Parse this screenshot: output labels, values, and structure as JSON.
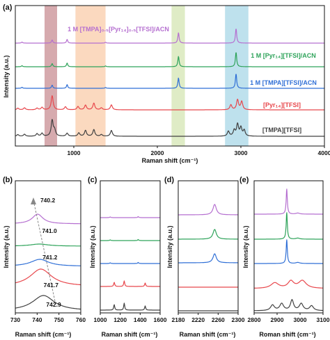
{
  "chart_data": [
    {
      "panel": "(a)",
      "type": "line",
      "xlabel": "Raman shift (cm⁻¹)",
      "ylabel": "Intensity (a.u.)",
      "xlim": [
        300,
        4000
      ],
      "xticks": [
        "1000",
        "2000",
        "3000",
        "4000"
      ],
      "y_ticks_shown": false,
      "highlight_bands": [
        {
          "from": 650,
          "to": 800,
          "color": "#b5656b"
        },
        {
          "from": 1020,
          "to": 1380,
          "color": "#f7b98a"
        },
        {
          "from": 2170,
          "to": 2330,
          "color": "#c5dc98"
        },
        {
          "from": 2810,
          "to": 3090,
          "color": "#89c8de"
        }
      ],
      "series": [
        {
          "name": "[TMPA][TFSI]",
          "color": "#404040",
          "peaks": [
            [
              330,
              0.1
            ],
            [
              410,
              0.12
            ],
            [
              560,
              0.15
            ],
            [
              620,
              0.18
            ],
            [
              741,
              0.95
            ],
            [
              770,
              0.35
            ],
            [
              920,
              0.18
            ],
            [
              1060,
              0.2
            ],
            [
              1140,
              0.35
            ],
            [
              1240,
              0.4
            ],
            [
              1330,
              0.1
            ],
            [
              1450,
              0.35
            ],
            [
              2850,
              0.3
            ],
            [
              2920,
              0.35
            ],
            [
              2960,
              0.7
            ],
            [
              3000,
              0.5
            ],
            [
              3040,
              0.35
            ]
          ]
        },
        {
          "name": "[Pyr₁₄][TFSI]",
          "color": "#e8474c",
          "peaks": [
            [
              330,
              0.1
            ],
            [
              410,
              0.12
            ],
            [
              560,
              0.1
            ],
            [
              620,
              0.15
            ],
            [
              741,
              0.85
            ],
            [
              900,
              0.18
            ],
            [
              1050,
              0.2
            ],
            [
              1140,
              0.28
            ],
            [
              1240,
              0.4
            ],
            [
              1330,
              0.12
            ],
            [
              1450,
              0.3
            ],
            [
              2880,
              0.3
            ],
            [
              2960,
              0.6
            ],
            [
              3010,
              0.5
            ]
          ]
        },
        {
          "name": "1 M [TMPA][TFSI]/ACN",
          "color": "#2f6fd6",
          "peaks": [
            [
              380,
              0.1
            ],
            [
              741,
              0.3
            ],
            [
              920,
              0.35
            ],
            [
              1380,
              0.08
            ],
            [
              2253,
              1.0
            ],
            [
              2942,
              1.4
            ]
          ]
        },
        {
          "name": "1 M [Pyr₁₄][TFSI]/ACN",
          "color": "#2ea35a",
          "peaks": [
            [
              380,
              0.1
            ],
            [
              741,
              0.3
            ],
            [
              920,
              0.35
            ],
            [
              1380,
              0.08
            ],
            [
              2253,
              1.0
            ],
            [
              2942,
              1.4
            ]
          ]
        },
        {
          "name": "1 M [TMPA]₀.₅[Pyr₁₄]₀.₅[TFSI]/ACN",
          "color": "#b56fd0",
          "peaks": [
            [
              380,
              0.1
            ],
            [
              741,
              0.3
            ],
            [
              920,
              0.35
            ],
            [
              1380,
              0.08
            ],
            [
              2253,
              1.0
            ],
            [
              2942,
              1.4
            ]
          ]
        }
      ]
    },
    {
      "panel": "(b)",
      "type": "line",
      "xlabel": "Raman shift (cm⁻¹)",
      "ylabel": "Intensity (a.u.)",
      "xlim": [
        730,
        760
      ],
      "xticks": [
        "730",
        "740",
        "750",
        "760"
      ],
      "series": [
        {
          "name": "",
          "color": "#404040",
          "peak_position": 742.9,
          "peak_label": "742.9"
        },
        {
          "name": "",
          "color": "#e8474c",
          "peak_position": 741.7,
          "peak_label": "741.7"
        },
        {
          "name": "",
          "color": "#2f6fd6",
          "peak_position": 741.2,
          "peak_label": "741.2"
        },
        {
          "name": "",
          "color": "#2ea35a",
          "peak_position": 741.0,
          "peak_label": "741.0"
        },
        {
          "name": "",
          "color": "#b56fd0",
          "peak_position": 740.2,
          "peak_label": "740.2"
        }
      ]
    },
    {
      "panel": "(c)",
      "type": "line",
      "xlabel": "Raman shift (cm⁻¹)",
      "ylabel": "Intensity (a.u.)",
      "xlim": [
        1000,
        1600
      ],
      "xticks": [
        "1000",
        "1200",
        "1400",
        "1600"
      ],
      "series_colors": [
        "#404040",
        "#e8474c",
        "#2f6fd6",
        "#2ea35a",
        "#b56fd0"
      ]
    },
    {
      "panel": "(d)",
      "type": "line",
      "xlabel": "Raman shift (cm⁻¹)",
      "ylabel": "Intensity (a.u.)",
      "xlim": [
        2180,
        2300
      ],
      "xticks": [
        "2180",
        "2220",
        "2260",
        "2300"
      ],
      "series_colors": [
        "#404040",
        "#e8474c",
        "#2f6fd6",
        "#2ea35a",
        "#b56fd0"
      ]
    },
    {
      "panel": "(e)",
      "type": "line",
      "xlabel": "Roman shift (cm⁻¹)",
      "ylabel": "Intensity (a.u.)",
      "xlim": [
        2800,
        3100
      ],
      "xticks": [
        "2800",
        "2900",
        "3000",
        "3100"
      ],
      "series_colors": [
        "#404040",
        "#e8474c",
        "#2f6fd6",
        "#2ea35a",
        "#b56fd0"
      ]
    }
  ]
}
